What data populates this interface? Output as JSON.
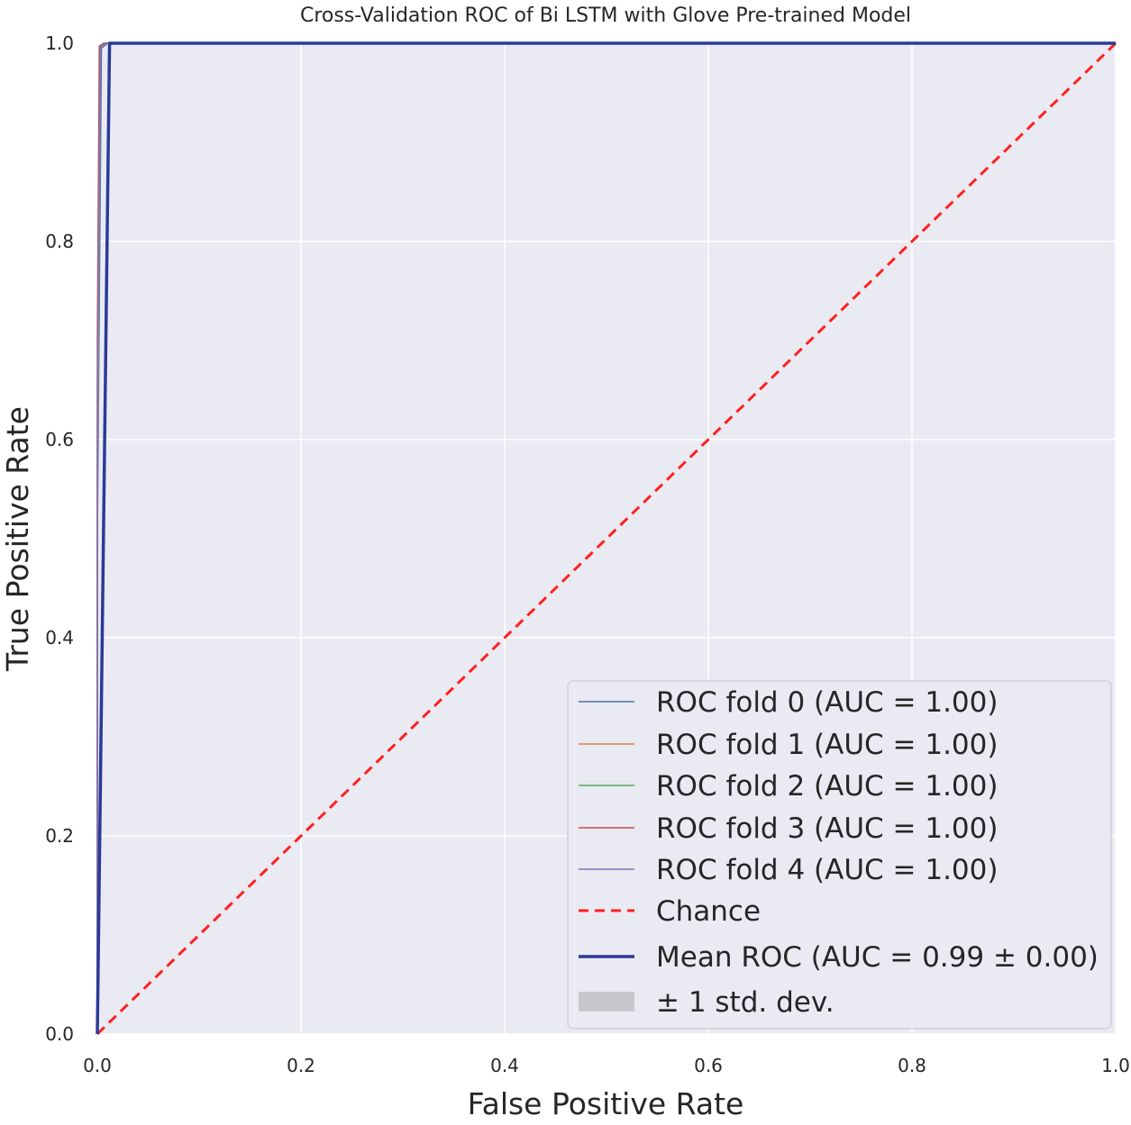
{
  "chart_data": {
    "type": "line",
    "title": "Cross-Validation ROC of Bi LSTM with Glove Pre-trained Model",
    "xlabel": "False Positive Rate",
    "ylabel": "True Positive Rate",
    "xlim": [
      0.0,
      1.0
    ],
    "ylim": [
      0.0,
      1.0
    ],
    "xticks": [
      0.0,
      0.2,
      0.4,
      0.6,
      0.8,
      1.0
    ],
    "yticks": [
      0.0,
      0.2,
      0.4,
      0.6,
      0.8,
      1.0
    ],
    "xtick_labels": [
      "0.0",
      "0.2",
      "0.4",
      "0.6",
      "0.8",
      "1.0"
    ],
    "ytick_labels": [
      "0.0",
      "0.2",
      "0.4",
      "0.6",
      "0.8",
      "1.0"
    ],
    "grid": true,
    "legend_position": "lower-right",
    "series": [
      {
        "name": "ROC fold 0 (AUC = 1.00)",
        "color": "#4c72b0",
        "style": "solid",
        "x": [
          0.0,
          0.0,
          0.004,
          0.01,
          1.0
        ],
        "y": [
          0.0,
          0.5,
          0.995,
          1.0,
          1.0
        ]
      },
      {
        "name": "ROC fold 1 (AUC = 1.00)",
        "color": "#dd8452",
        "style": "solid",
        "x": [
          0.0,
          0.0,
          0.003,
          0.008,
          1.0
        ],
        "y": [
          0.0,
          0.55,
          0.996,
          1.0,
          1.0
        ]
      },
      {
        "name": "ROC fold 2 (AUC = 1.00)",
        "color": "#55a868",
        "style": "solid",
        "x": [
          0.0,
          0.0,
          0.003,
          0.007,
          1.0
        ],
        "y": [
          0.0,
          0.6,
          0.997,
          1.0,
          1.0
        ]
      },
      {
        "name": "ROC fold 3 (AUC = 1.00)",
        "color": "#c44e52",
        "style": "solid",
        "x": [
          0.0,
          0.0,
          0.002,
          0.006,
          1.0
        ],
        "y": [
          0.0,
          0.7,
          0.997,
          1.0,
          1.0
        ]
      },
      {
        "name": "ROC fold 4 (AUC = 1.00)",
        "color": "#8172b3",
        "style": "solid",
        "x": [
          0.0,
          0.0,
          0.003,
          0.007,
          1.0
        ],
        "y": [
          0.0,
          0.65,
          0.996,
          1.0,
          1.0
        ]
      },
      {
        "name": "Chance",
        "color": "#ff2020",
        "style": "dashed",
        "x": [
          0.0,
          1.0
        ],
        "y": [
          0.0,
          1.0
        ]
      },
      {
        "name": "Mean ROC (AUC = 0.99 ± 0.00)",
        "color": "#2b3a98",
        "style": "solid",
        "x": [
          0.0,
          0.012,
          0.02,
          0.05,
          1.0
        ],
        "y": [
          0.0,
          1.0,
          1.0,
          1.0,
          1.0
        ]
      }
    ],
    "std_band": {
      "name": "± 1 std. dev.",
      "color": "#c8c8cc"
    }
  }
}
